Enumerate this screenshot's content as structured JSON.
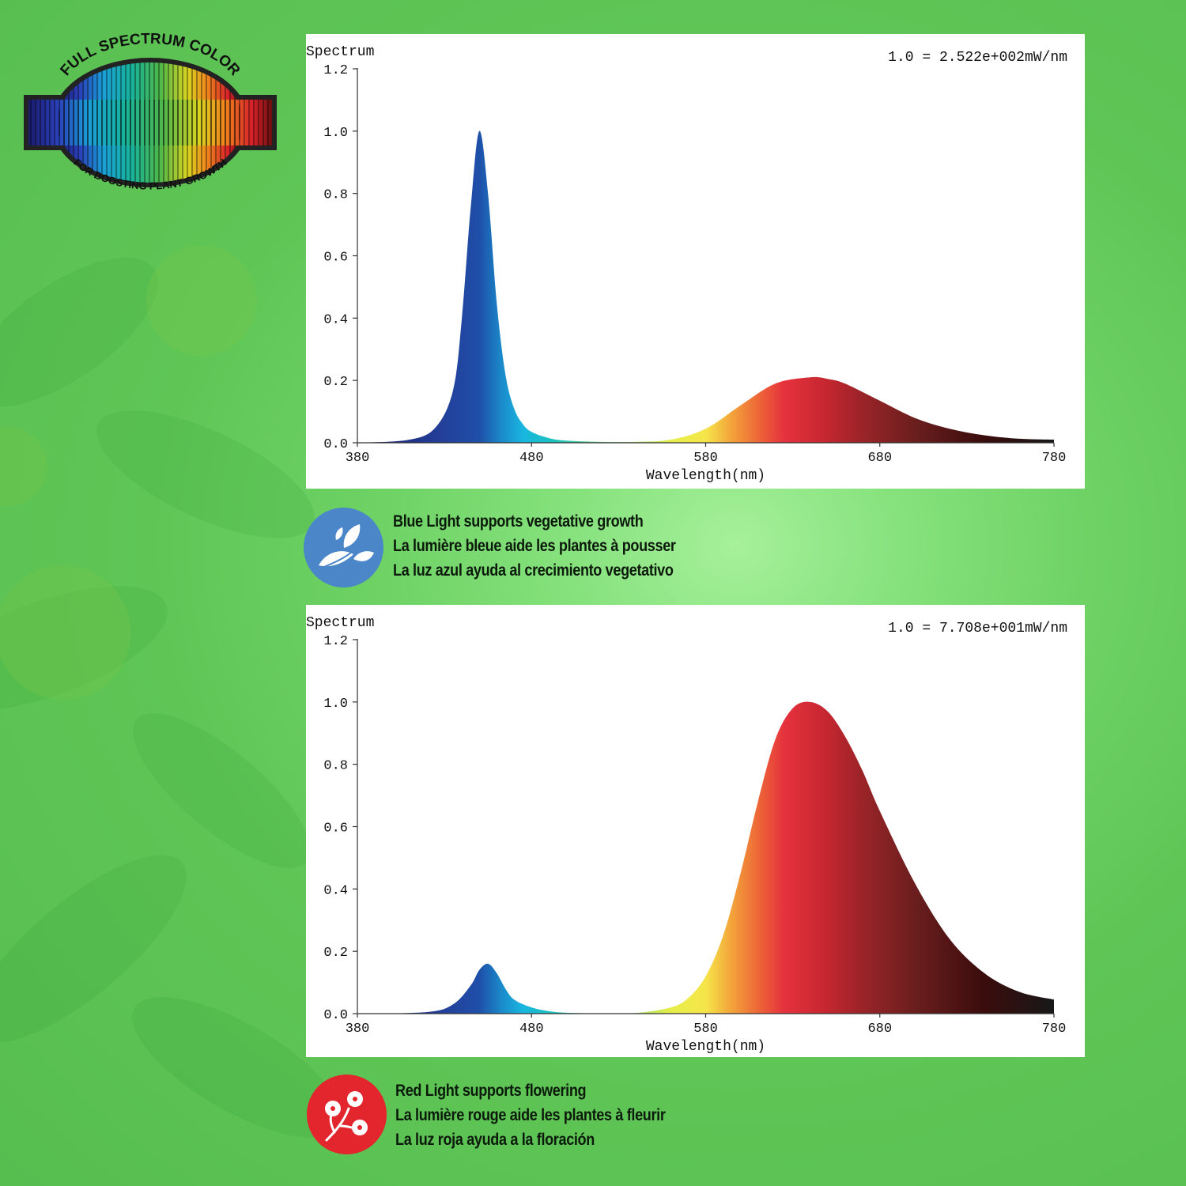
{
  "logo": {
    "top_text": "FULL SPECTRUM COLOR",
    "bottom_text": "FOR BOOSTING PLANT GROWTH"
  },
  "colors": {
    "background": "#5cc453",
    "blue_badge": "#4a86c8",
    "red_badge": "#e3262d"
  },
  "chart_data": [
    {
      "type": "area",
      "title": "Spectrum",
      "scale_note": "1.0 = 2.522e+002mW/nm",
      "xlabel": "Wavelength(nm)",
      "ylabel": "",
      "xlim": [
        380,
        780
      ],
      "ylim": [
        0,
        1.2
      ],
      "x_ticks": [
        "380",
        "480",
        "580",
        "680",
        "780"
      ],
      "y_ticks": [
        "0.0",
        "0.2",
        "0.4",
        "0.6",
        "0.8",
        "1.0",
        "1.2"
      ],
      "x": [
        380,
        410,
        425,
        435,
        440,
        445,
        450,
        455,
        460,
        465,
        470,
        475,
        480,
        490,
        500,
        520,
        540,
        560,
        580,
        600,
        620,
        640,
        650,
        660,
        680,
        700,
        720,
        740,
        760,
        780
      ],
      "values": [
        0,
        0.01,
        0.05,
        0.17,
        0.4,
        0.75,
        1.0,
        0.8,
        0.45,
        0.22,
        0.11,
        0.06,
        0.035,
        0.015,
        0.007,
        0.003,
        0.003,
        0.01,
        0.045,
        0.12,
        0.19,
        0.21,
        0.205,
        0.19,
        0.135,
        0.08,
        0.045,
        0.024,
        0.013,
        0.01
      ],
      "grid": false
    },
    {
      "type": "area",
      "title": "Spectrum",
      "scale_note": "1.0 = 7.708e+001mW/nm",
      "xlabel": "Wavelength(nm)",
      "ylabel": "",
      "xlim": [
        380,
        780
      ],
      "ylim": [
        0,
        1.2
      ],
      "x_ticks": [
        "380",
        "480",
        "580",
        "680",
        "780"
      ],
      "y_ticks": [
        "0.0",
        "0.2",
        "0.4",
        "0.6",
        "0.8",
        "1.0",
        "1.2"
      ],
      "x": [
        380,
        420,
        435,
        445,
        450,
        455,
        460,
        465,
        470,
        480,
        490,
        500,
        520,
        540,
        560,
        570,
        580,
        590,
        600,
        610,
        620,
        630,
        640,
        650,
        660,
        670,
        680,
        700,
        720,
        740,
        760,
        780
      ],
      "values": [
        0,
        0.005,
        0.03,
        0.09,
        0.14,
        0.16,
        0.13,
        0.08,
        0.045,
        0.02,
        0.008,
        0.003,
        0.001,
        0.002,
        0.02,
        0.05,
        0.12,
        0.25,
        0.45,
        0.68,
        0.88,
        0.98,
        1.0,
        0.97,
        0.89,
        0.78,
        0.65,
        0.42,
        0.24,
        0.13,
        0.07,
        0.045
      ],
      "grid": false
    }
  ],
  "captions": {
    "blue": [
      "Blue Light supports vegetative growth",
      "La lumière bleue aide les plantes à pousser",
      "La luz azul ayuda al crecimiento vegetativo"
    ],
    "red": [
      "Red Light supports flowering",
      "La lumière rouge aide les plantes à fleurir",
      "La luz roja ayuda a la floración"
    ]
  },
  "icons": {
    "blue": "leaves-icon",
    "red": "flowers-icon"
  }
}
